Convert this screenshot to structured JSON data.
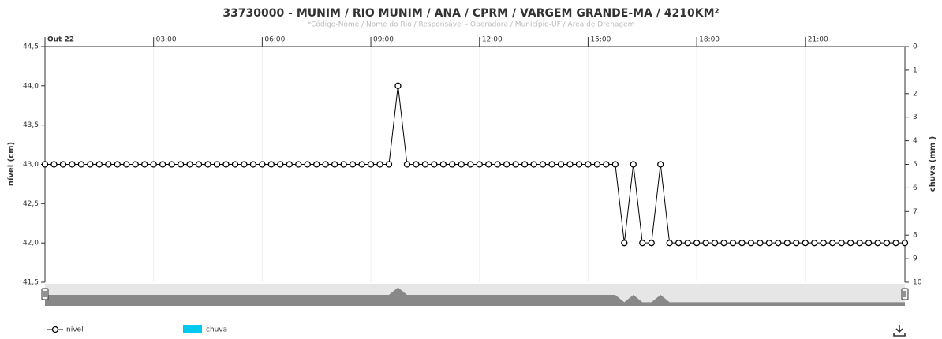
{
  "chart_data": {
    "type": "line",
    "title": "33730000 - MUNIM / RIO MUNIM / ANA / CPRM / VARGEM GRANDE-MA / 4210KM²",
    "subtitle": "*Código-Nome / Nome do Rio / Responsável - Operadora / Município-UF / Área de Drenagem",
    "ylabel": "nível (cm)",
    "y2label": "chuva (mm )",
    "x": [
      "00:00",
      "00:15",
      "00:30",
      "00:45",
      "01:00",
      "01:15",
      "01:30",
      "01:45",
      "02:00",
      "02:15",
      "02:30",
      "02:45",
      "03:00",
      "03:15",
      "03:30",
      "03:45",
      "04:00",
      "04:15",
      "04:30",
      "04:45",
      "05:00",
      "05:15",
      "05:30",
      "05:45",
      "06:00",
      "06:15",
      "06:30",
      "06:45",
      "07:00",
      "07:15",
      "07:30",
      "07:45",
      "08:00",
      "08:15",
      "08:30",
      "08:45",
      "09:00",
      "09:15",
      "09:30",
      "09:45",
      "10:00",
      "10:15",
      "10:30",
      "10:45",
      "11:00",
      "11:15",
      "11:30",
      "11:45",
      "12:00",
      "12:15",
      "12:30",
      "12:45",
      "13:00",
      "13:15",
      "13:30",
      "13:45",
      "14:00",
      "14:15",
      "14:30",
      "14:45",
      "15:00",
      "15:15",
      "15:30",
      "15:45",
      "16:00",
      "16:15",
      "16:30",
      "16:45",
      "17:00",
      "17:15",
      "17:30",
      "17:45",
      "18:00",
      "18:15",
      "18:30",
      "18:45",
      "19:00",
      "19:15",
      "19:30",
      "19:45",
      "20:00",
      "20:15",
      "20:30",
      "20:45",
      "21:00",
      "21:15",
      "21:30",
      "21:45",
      "22:00",
      "22:15",
      "22:30",
      "22:45",
      "23:00",
      "23:15",
      "23:30",
      "23:45"
    ],
    "xlim": [
      "00:00",
      "23:45"
    ],
    "xticks": [
      {
        "value": "00:00",
        "label": "Out 22"
      },
      "03:00",
      "06:00",
      "09:00",
      "12:00",
      "15:00",
      "18:00",
      "21:00"
    ],
    "series": [
      {
        "name": "nível",
        "color": "#000000",
        "values": [
          43,
          43,
          43,
          43,
          43,
          43,
          43,
          43,
          43,
          43,
          43,
          43,
          43,
          43,
          43,
          43,
          43,
          43,
          43,
          43,
          43,
          43,
          43,
          43,
          43,
          43,
          43,
          43,
          43,
          43,
          43,
          43,
          43,
          43,
          43,
          43,
          43,
          43,
          43,
          44,
          43,
          43,
          43,
          43,
          43,
          43,
          43,
          43,
          43,
          43,
          43,
          43,
          43,
          43,
          43,
          43,
          43,
          43,
          43,
          43,
          43,
          43,
          43,
          43,
          42,
          43,
          42,
          42,
          43,
          42,
          42,
          42,
          42,
          42,
          42,
          42,
          42,
          42,
          42,
          42,
          42,
          42,
          42,
          42,
          42,
          42,
          42,
          42,
          42,
          42,
          42,
          42,
          42,
          42,
          42,
          42
        ]
      },
      {
        "name": "chuva",
        "color": "#00c8f0",
        "axis": "y2",
        "values": [
          null,
          null,
          null,
          null,
          null,
          null,
          null,
          null,
          null,
          null,
          null,
          null,
          null,
          null,
          null,
          null,
          null,
          null,
          null,
          null,
          null,
          null,
          null,
          null,
          null,
          null,
          null,
          null,
          null,
          null,
          null,
          null,
          null,
          null,
          null,
          null,
          null,
          null,
          null,
          null,
          null,
          null,
          null,
          null,
          null,
          null,
          null,
          null,
          null,
          null,
          null,
          null,
          null,
          null,
          null,
          null,
          null,
          null,
          null,
          null,
          null,
          null,
          null,
          null,
          null,
          null,
          null,
          null,
          null,
          null,
          null,
          null,
          null,
          null,
          null,
          null,
          null,
          null,
          null,
          null,
          null,
          null,
          null,
          null,
          null,
          null,
          null,
          null,
          null,
          null,
          null,
          null,
          null,
          null,
          null,
          null
        ]
      }
    ],
    "ylim": [
      41.5,
      44.5
    ],
    "yticks": [
      {
        "value": 41.5,
        "label": "41,5"
      },
      {
        "value": 42,
        "label": "42,0"
      },
      {
        "value": 42.5,
        "label": "42,5"
      },
      {
        "value": 43,
        "label": "43,0"
      },
      {
        "value": 43.5,
        "label": "43,5"
      },
      {
        "value": 44,
        "label": "44,0"
      },
      {
        "value": 44.5,
        "label": "44,5"
      }
    ],
    "y2lim": [
      0,
      10
    ],
    "y2_reversed": true,
    "y2ticks": [
      0,
      1,
      2,
      3,
      4,
      5,
      6,
      7,
      8,
      9,
      10
    ]
  }
}
